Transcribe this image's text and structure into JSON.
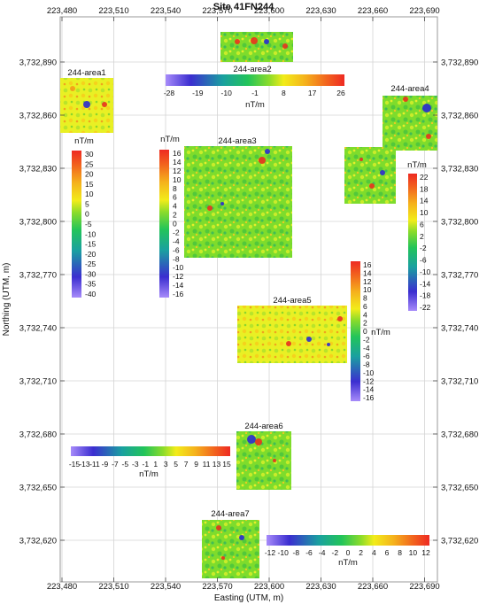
{
  "title": "Site 41FN244",
  "x_axis": {
    "label": "Easting (UTM, m)",
    "ticks": [
      "223,480",
      "223,510",
      "223,540",
      "223,570",
      "223,600",
      "223,630",
      "223,660",
      "223,690"
    ]
  },
  "y_axis": {
    "label": "Northing (UTM, m)",
    "ticks": [
      "3,732,890",
      "3,732,860",
      "3,732,830",
      "3,732,800",
      "3,732,770",
      "3,732,740",
      "3,732,710",
      "3,732,680",
      "3,732,650",
      "3,732,620"
    ]
  },
  "grid": true,
  "survey_areas": [
    {
      "label": "244-area1"
    },
    {
      "label": "244-area2"
    },
    {
      "label": "244-area3"
    },
    {
      "label": "244-area4"
    },
    {
      "label": "244-area5"
    },
    {
      "label": "244-area6"
    },
    {
      "label": "244-area7"
    }
  ],
  "legends": [
    {
      "id": "area1",
      "unit": "nT/m",
      "orientation": "vertical",
      "ticks": [
        "30",
        "25",
        "20",
        "15",
        "10",
        "5",
        "0",
        "-5",
        "-10",
        "-15",
        "-20",
        "-25",
        "-30",
        "-35",
        "-40"
      ]
    },
    {
      "id": "area2",
      "unit": "nT/m",
      "orientation": "horizontal",
      "ticks": [
        "-28",
        "-19",
        "-10",
        "-1",
        "8",
        "17",
        "26"
      ]
    },
    {
      "id": "area3",
      "unit": "nT/m",
      "orientation": "vertical",
      "ticks": [
        "16",
        "14",
        "12",
        "10",
        "8",
        "6",
        "4",
        "2",
        "0",
        "-2",
        "-4",
        "-6",
        "-8",
        "-10",
        "-12",
        "-14",
        "-16"
      ]
    },
    {
      "id": "area4",
      "unit": "nT/m",
      "orientation": "vertical",
      "ticks": [
        "22",
        "18",
        "14",
        "10",
        "6",
        "2",
        "-2",
        "-6",
        "-10",
        "-14",
        "-18",
        "-22"
      ]
    },
    {
      "id": "area5",
      "unit": "nT/m",
      "orientation": "vertical",
      "ticks": [
        "16",
        "14",
        "12",
        "10",
        "8",
        "6",
        "4",
        "2",
        "0",
        "-2",
        "-4",
        "-6",
        "-8",
        "-10",
        "-12",
        "-14",
        "-16"
      ]
    },
    {
      "id": "area6",
      "unit": "nT/m",
      "orientation": "horizontal",
      "ticks": [
        "-15",
        "-13",
        "-11",
        "-9",
        "-7",
        "-5",
        "-3",
        "-1",
        "1",
        "3",
        "5",
        "7",
        "9",
        "11",
        "13",
        "15"
      ]
    },
    {
      "id": "area7",
      "unit": "nT/m",
      "orientation": "horizontal",
      "ticks": [
        "-12",
        "-10",
        "-8",
        "-6",
        "-4",
        "-2",
        "0",
        "2",
        "4",
        "6",
        "8",
        "10",
        "12"
      ]
    }
  ],
  "colors": {
    "scale": [
      "#9b7cf0",
      "#3322cc",
      "#1890a0",
      "#22c060",
      "#7ad830",
      "#ddf020",
      "#f5d818",
      "#f59b1a",
      "#ee3322"
    ]
  }
}
